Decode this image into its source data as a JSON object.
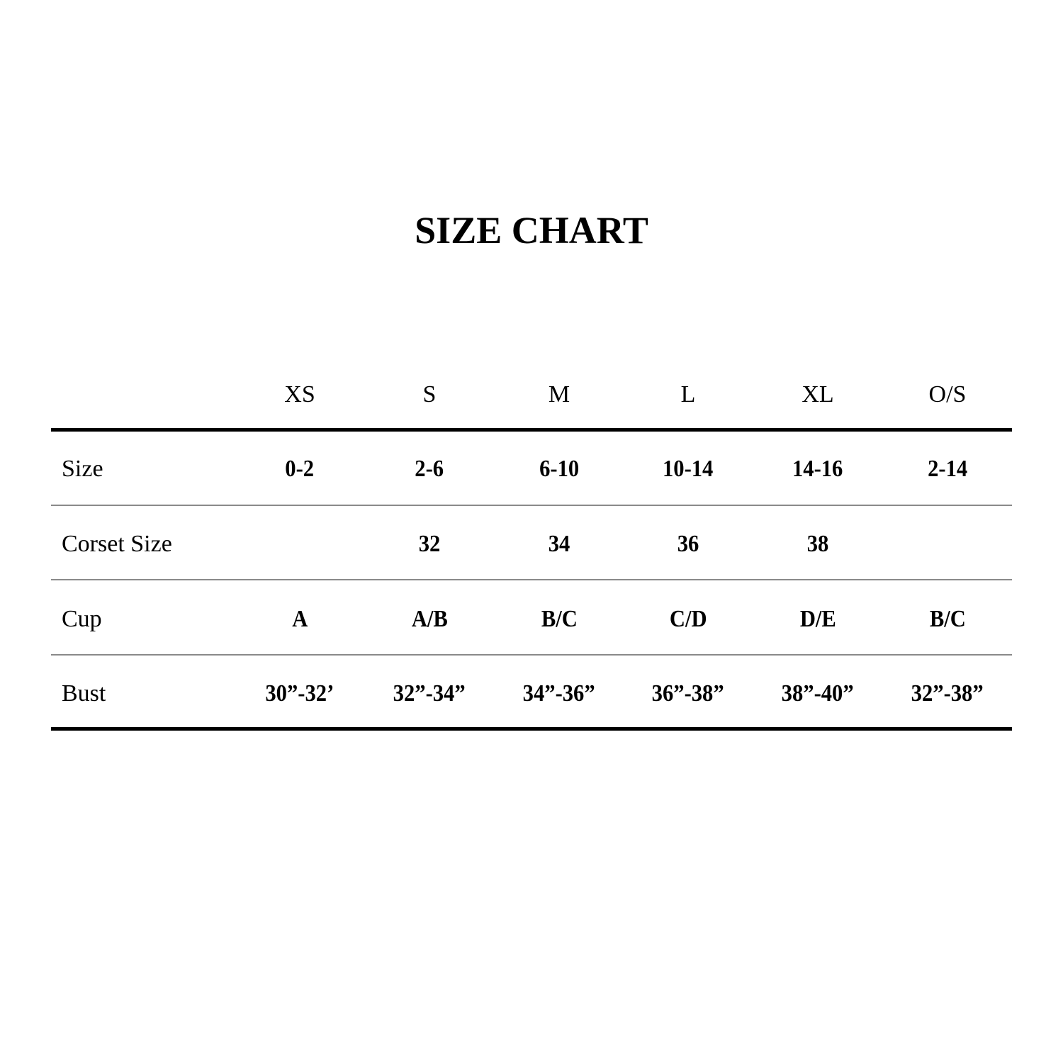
{
  "title": "SIZE CHART",
  "columns": [
    "XS",
    "S",
    "M",
    "L",
    "XL",
    "O/S"
  ],
  "rows": [
    {
      "label": "Size",
      "values": [
        "0-2",
        "2-6",
        "6-10",
        "10-14",
        "14-16",
        "2-14"
      ]
    },
    {
      "label": "Corset Size",
      "values": [
        "",
        "32",
        "34",
        "36",
        "38",
        ""
      ]
    },
    {
      "label": "Cup",
      "values": [
        "A",
        "A/B",
        "B/C",
        "C/D",
        "D/E",
        "B/C"
      ]
    },
    {
      "label": "Bust",
      "values": [
        "30”-32’",
        "32”-34”",
        "34”-36”",
        "36”-38”",
        "38”-40”",
        "32”-38”"
      ]
    }
  ]
}
